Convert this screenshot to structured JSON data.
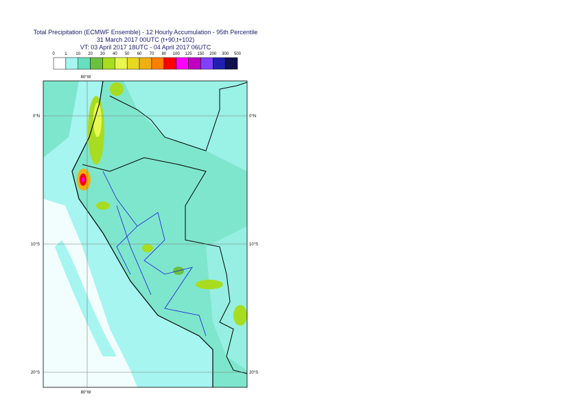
{
  "header": {
    "title": [
      "Total Precipitation (ECMWF Ensemble) - 12 Hourly Accumulation - 95th Percentile",
      "31 March 2017 00UTC (t+90,t+102)",
      "VT: 03 April 2017 18UTC - 04 April 2017 06UTC"
    ]
  },
  "legend": {
    "labels": [
      0,
      1,
      10,
      20,
      30,
      40,
      50,
      60,
      70,
      80,
      100,
      125,
      150,
      200,
      300,
      500
    ],
    "colors": [
      "#ffffff",
      "#a6f5f0",
      "#66e0c0",
      "#6cc040",
      "#a8dc20",
      "#e8f850",
      "#e8d820",
      "#f0b010",
      "#ff8000",
      "#ff0000",
      "#ff00ff",
      "#c000c0",
      "#8040ff",
      "#2020b0",
      "#101050"
    ]
  },
  "map": {
    "lon_labels": [
      "80°W",
      "80°W"
    ],
    "lat_labels": [
      "0°N",
      "10°S",
      "20°S",
      "0°N",
      "10°S",
      "20°S"
    ]
  }
}
